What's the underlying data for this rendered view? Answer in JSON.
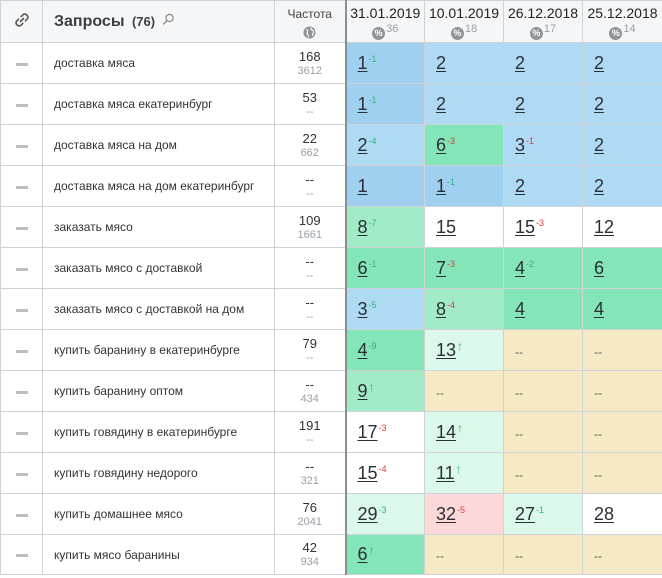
{
  "header": {
    "queries_label": "Запросы",
    "queries_count": "(76)",
    "frequency_label": "Частота",
    "dates": [
      {
        "date": "31.01.2019",
        "pct": "36"
      },
      {
        "date": "10.01.2019",
        "pct": "18"
      },
      {
        "date": "26.12.2018",
        "pct": "17"
      },
      {
        "date": "25.12.2018",
        "pct": "14"
      }
    ],
    "pct_symbol": "%"
  },
  "colors": {
    "blue": "#9fd0ef",
    "green": "#83e5b8",
    "pink": "#fdd9d9",
    "tan": "#f6e9c6"
  },
  "rows": [
    {
      "query": "доставка мяса",
      "freq": "168",
      "freq_sub": "3612",
      "cells": [
        {
          "v": "1",
          "d": "-1",
          "dir": "up",
          "bg": "bg-blue"
        },
        {
          "v": "2",
          "d": "",
          "dir": "",
          "bg": "bg-lblue"
        },
        {
          "v": "2",
          "d": "",
          "dir": "",
          "bg": "bg-lblue"
        },
        {
          "v": "2",
          "d": "",
          "dir": "",
          "bg": "bg-lblue"
        }
      ]
    },
    {
      "query": "доставка мяса екатеринбург",
      "freq": "53",
      "freq_sub": "--",
      "cells": [
        {
          "v": "1",
          "d": "-1",
          "dir": "up",
          "bg": "bg-blue"
        },
        {
          "v": "2",
          "d": "",
          "dir": "",
          "bg": "bg-lblue"
        },
        {
          "v": "2",
          "d": "",
          "dir": "",
          "bg": "bg-lblue"
        },
        {
          "v": "2",
          "d": "",
          "dir": "",
          "bg": "bg-lblue"
        }
      ]
    },
    {
      "query": "доставка мяса на дом",
      "freq": "22",
      "freq_sub": "662",
      "cells": [
        {
          "v": "2",
          "d": "-4",
          "dir": "up",
          "bg": "bg-lblue"
        },
        {
          "v": "6",
          "d": "-3",
          "dir": "down",
          "bg": "bg-green"
        },
        {
          "v": "3",
          "d": "-1",
          "dir": "down",
          "bg": "bg-lblue"
        },
        {
          "v": "2",
          "d": "",
          "dir": "",
          "bg": "bg-lblue"
        }
      ]
    },
    {
      "query": "доставка мяса на дом екатеринбург",
      "freq": "--",
      "freq_sub": "--",
      "cells": [
        {
          "v": "1",
          "d": "",
          "dir": "",
          "bg": "bg-blue"
        },
        {
          "v": "1",
          "d": "-1",
          "dir": "up",
          "bg": "bg-blue"
        },
        {
          "v": "2",
          "d": "",
          "dir": "",
          "bg": "bg-lblue"
        },
        {
          "v": "2",
          "d": "",
          "dir": "",
          "bg": "bg-lblue"
        }
      ]
    },
    {
      "query": "заказать мясо",
      "freq": "109",
      "freq_sub": "1661",
      "cells": [
        {
          "v": "8",
          "d": "-7",
          "dir": "up",
          "bg": "bg-mgreen"
        },
        {
          "v": "15",
          "d": "",
          "dir": "",
          "bg": "bg-white"
        },
        {
          "v": "15",
          "d": "-3",
          "dir": "down",
          "bg": "bg-white"
        },
        {
          "v": "12",
          "d": "",
          "dir": "",
          "bg": "bg-white"
        }
      ]
    },
    {
      "query": "заказать мясо с доставкой",
      "freq": "--",
      "freq_sub": "--",
      "cells": [
        {
          "v": "6",
          "d": "-1",
          "dir": "up",
          "bg": "bg-green"
        },
        {
          "v": "7",
          "d": "-3",
          "dir": "down",
          "bg": "bg-green"
        },
        {
          "v": "4",
          "d": "-2",
          "dir": "up",
          "bg": "bg-green"
        },
        {
          "v": "6",
          "d": "",
          "dir": "",
          "bg": "bg-green"
        }
      ]
    },
    {
      "query": "заказать мясо с доставкой на дом",
      "freq": "--",
      "freq_sub": "--",
      "cells": [
        {
          "v": "3",
          "d": "-5",
          "dir": "up",
          "bg": "bg-lblue"
        },
        {
          "v": "8",
          "d": "-4",
          "dir": "down",
          "bg": "bg-mgreen"
        },
        {
          "v": "4",
          "d": "",
          "dir": "",
          "bg": "bg-green"
        },
        {
          "v": "4",
          "d": "",
          "dir": "",
          "bg": "bg-green"
        }
      ]
    },
    {
      "query": "купить баранину в екатеринбурге",
      "freq": "79",
      "freq_sub": "--",
      "cells": [
        {
          "v": "4",
          "d": "-9",
          "dir": "up",
          "bg": "bg-green"
        },
        {
          "v": "13",
          "d": "↑",
          "dir": "arrow",
          "bg": "bg-pgreen"
        },
        {
          "v": "--",
          "d": "",
          "dir": "",
          "bg": "bg-tan"
        },
        {
          "v": "--",
          "d": "",
          "dir": "",
          "bg": "bg-tan"
        }
      ]
    },
    {
      "query": "купить баранину оптом",
      "freq": "--",
      "freq_sub": "434",
      "cells": [
        {
          "v": "9",
          "d": "↑",
          "dir": "arrow",
          "bg": "bg-mgreen"
        },
        {
          "v": "--",
          "d": "",
          "dir": "",
          "bg": "bg-tan"
        },
        {
          "v": "--",
          "d": "",
          "dir": "",
          "bg": "bg-tan"
        },
        {
          "v": "--",
          "d": "",
          "dir": "",
          "bg": "bg-tan"
        }
      ]
    },
    {
      "query": "купить говядину в екатеринбурге",
      "freq": "191",
      "freq_sub": "--",
      "cells": [
        {
          "v": "17",
          "d": "-3",
          "dir": "down",
          "bg": "bg-white"
        },
        {
          "v": "14",
          "d": "↑",
          "dir": "arrow",
          "bg": "bg-pgreen"
        },
        {
          "v": "--",
          "d": "",
          "dir": "",
          "bg": "bg-tan"
        },
        {
          "v": "--",
          "d": "",
          "dir": "",
          "bg": "bg-tan"
        }
      ]
    },
    {
      "query": "купить говядину недорого",
      "freq": "--",
      "freq_sub": "321",
      "cells": [
        {
          "v": "15",
          "d": "-4",
          "dir": "down",
          "bg": "bg-white"
        },
        {
          "v": "11",
          "d": "↑",
          "dir": "arrow",
          "bg": "bg-pgreen"
        },
        {
          "v": "--",
          "d": "",
          "dir": "",
          "bg": "bg-tan"
        },
        {
          "v": "--",
          "d": "",
          "dir": "",
          "bg": "bg-tan"
        }
      ]
    },
    {
      "query": "купить домашнее мясо",
      "freq": "76",
      "freq_sub": "2041",
      "cells": [
        {
          "v": "29",
          "d": "-3",
          "dir": "up",
          "bg": "bg-pgreen"
        },
        {
          "v": "32",
          "d": "-5",
          "dir": "down",
          "bg": "bg-pink"
        },
        {
          "v": "27",
          "d": "-1",
          "dir": "up",
          "bg": "bg-pgreen"
        },
        {
          "v": "28",
          "d": "",
          "dir": "",
          "bg": "bg-white"
        }
      ]
    },
    {
      "query": "купить мясо баранины",
      "freq": "42",
      "freq_sub": "934",
      "cells": [
        {
          "v": "6",
          "d": "↑",
          "dir": "arrow",
          "bg": "bg-green"
        },
        {
          "v": "--",
          "d": "",
          "dir": "",
          "bg": "bg-tan"
        },
        {
          "v": "--",
          "d": "",
          "dir": "",
          "bg": "bg-tan"
        },
        {
          "v": "--",
          "d": "",
          "dir": "",
          "bg": "bg-tan"
        }
      ]
    }
  ]
}
